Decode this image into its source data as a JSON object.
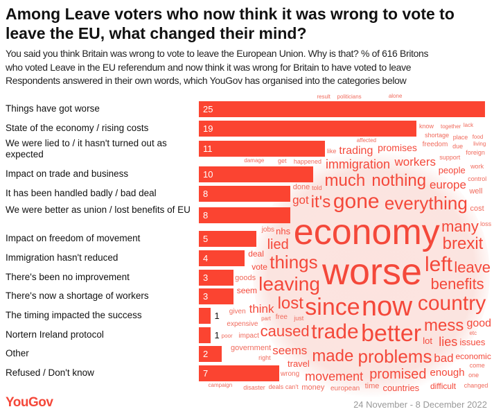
{
  "title": "Among Leave voters who now think it was wrong to vote to leave the EU, what changed their mind?",
  "subtitle_lines": [
    "You said you think Britain was wrong to vote to leave the European Union. Why is that? % of 616 Britons",
    "who voted Leave in the EU referendum and now think it was wrong for Britain to have voted to leave",
    "Respondents answered in their own words, which YouGov has organised into the categories below"
  ],
  "chart_data": {
    "type": "bar",
    "orientation": "horizontal",
    "categories": [
      "Things have got worse",
      "State of the economy / rising costs",
      "We were lied to / it hasn't turned out as expected",
      "Impact on trade and business",
      "It has been handled badly / bad deal",
      "We were better as union / lost benefits of EU",
      "Impact on freedom of movement",
      "Immigration hasn't reduced",
      "There's been no improvement",
      "There's now a shortage of workers",
      "The timing impacted the success",
      "Nortern Ireland protocol",
      "Other",
      "Refused / Don't know"
    ],
    "values": [
      25,
      19,
      11,
      10,
      8,
      8,
      5,
      4,
      3,
      3,
      1,
      1,
      2,
      7
    ],
    "unit": "%",
    "bar_color": "#fb4431",
    "xlim": [
      0,
      25
    ]
  },
  "word_cloud": {
    "color": "#f4483a",
    "words": [
      "economy",
      "worse",
      "now",
      "since",
      "trade",
      "leaving",
      "gone",
      "everything",
      "mess",
      "benefits",
      "left",
      "things",
      "problems",
      "many",
      "brexit",
      "lost",
      "country",
      "better",
      "immigration",
      "made",
      "promised",
      "leave",
      "caused",
      "lied",
      "seems",
      "countries",
      "issues",
      "people",
      "european",
      "it's",
      "europe",
      "think",
      "workers",
      "much",
      "nothing",
      "enough",
      "movement",
      "seem",
      "economic",
      "expensive",
      "got",
      "good",
      "bad",
      "lies",
      "vote",
      "done",
      "lot",
      "nhs",
      "just",
      "told",
      "deal",
      "trading",
      "difficult",
      "promises",
      "impact",
      "wrong",
      "freedom",
      "given",
      "money",
      "time",
      "goods",
      "cost",
      "jobs",
      "free",
      "well",
      "government",
      "travel",
      "loss",
      "happened",
      "support",
      "control",
      "come",
      "right",
      "can't",
      "like",
      "get",
      "part",
      "etc",
      "shortage",
      "one",
      "damage",
      "work",
      "changed",
      "deals",
      "affected",
      "due",
      "together",
      "living",
      "foreign",
      "poor",
      "food",
      "know",
      "politicians",
      "disaster",
      "alone",
      "lack",
      "place",
      "result",
      "campaign",
      "standard"
    ]
  },
  "footer": {
    "logo": "YouGov",
    "date": "24 November - 8 December 2022"
  }
}
